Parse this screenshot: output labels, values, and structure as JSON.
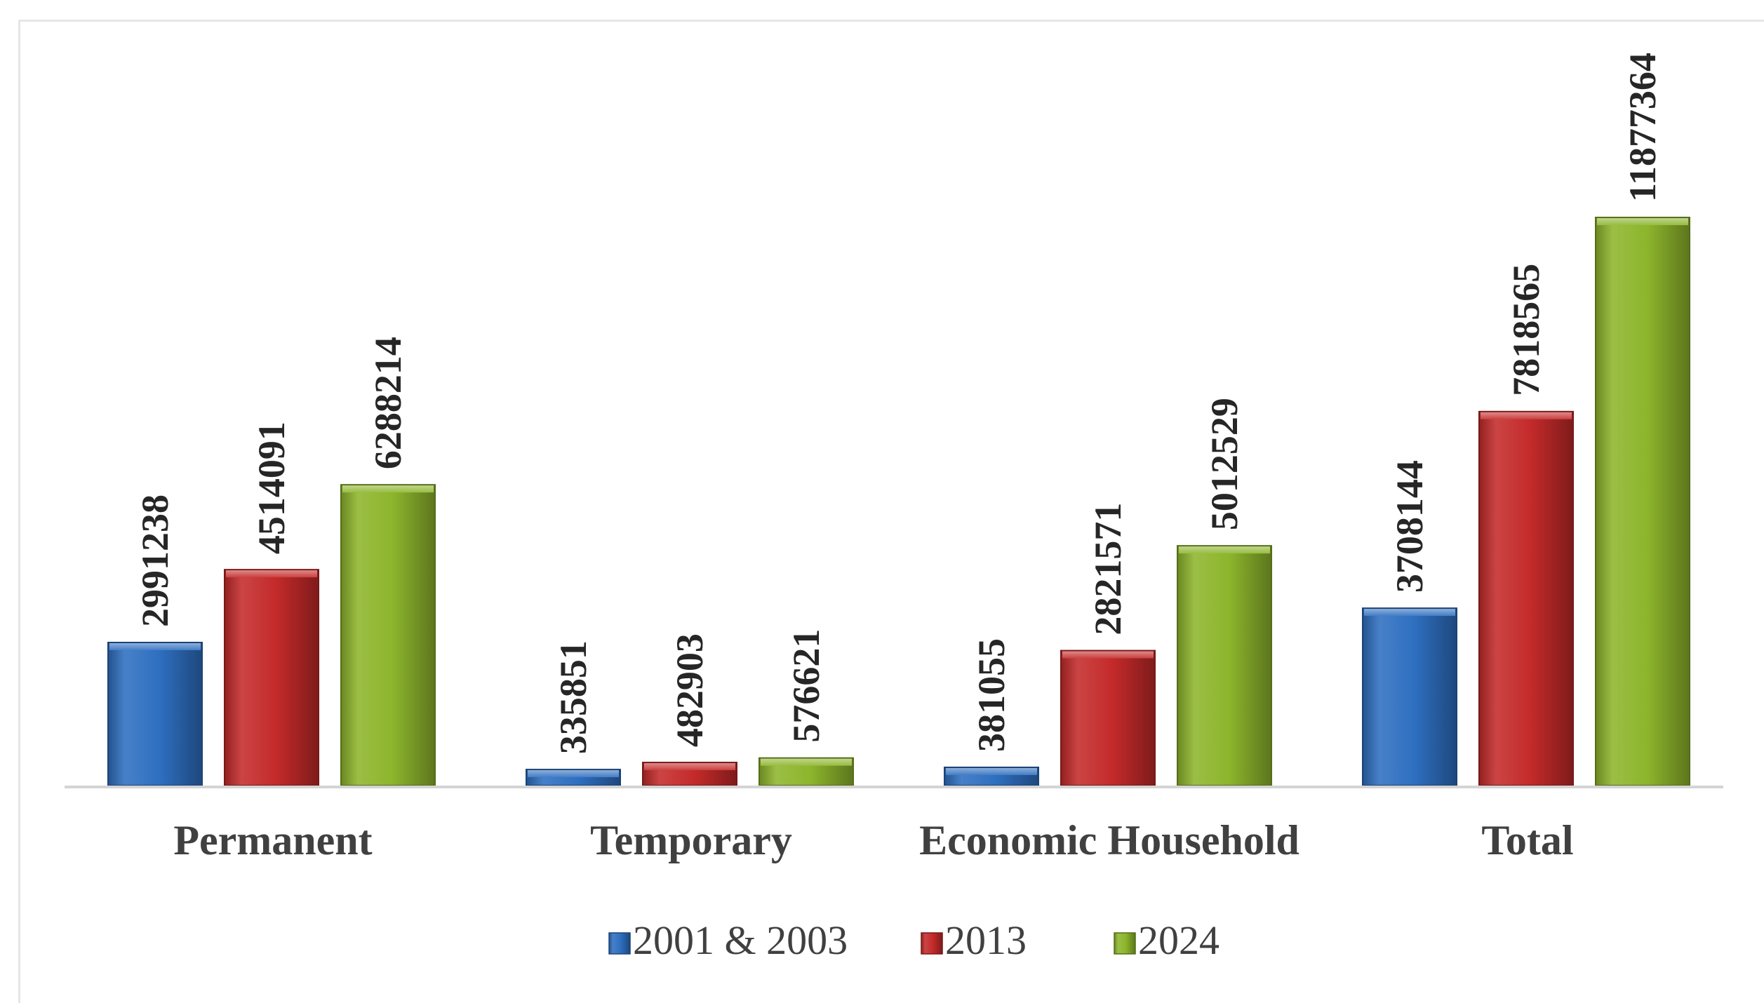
{
  "chart_data": {
    "type": "bar",
    "title": "",
    "xlabel": "",
    "ylabel": "",
    "categories": [
      "Permanent",
      "Temporary",
      "Economic Household",
      "Total"
    ],
    "series": [
      {
        "name": "2001 & 2003",
        "color": "#2e6fc0",
        "values": [
          2991238,
          335851,
          381055,
          3708144
        ]
      },
      {
        "name": "2013",
        "color": "#c42a2a",
        "values": [
          4514091,
          482903,
          2821571,
          7818565
        ]
      },
      {
        "name": "2024",
        "color": "#8db52c",
        "values": [
          6288214,
          576621,
          5012529,
          11877364
        ]
      }
    ],
    "ylim": [
      0,
      12000000
    ],
    "grid": false,
    "legend_position": "bottom",
    "data_labels": "vertical, above bars"
  }
}
